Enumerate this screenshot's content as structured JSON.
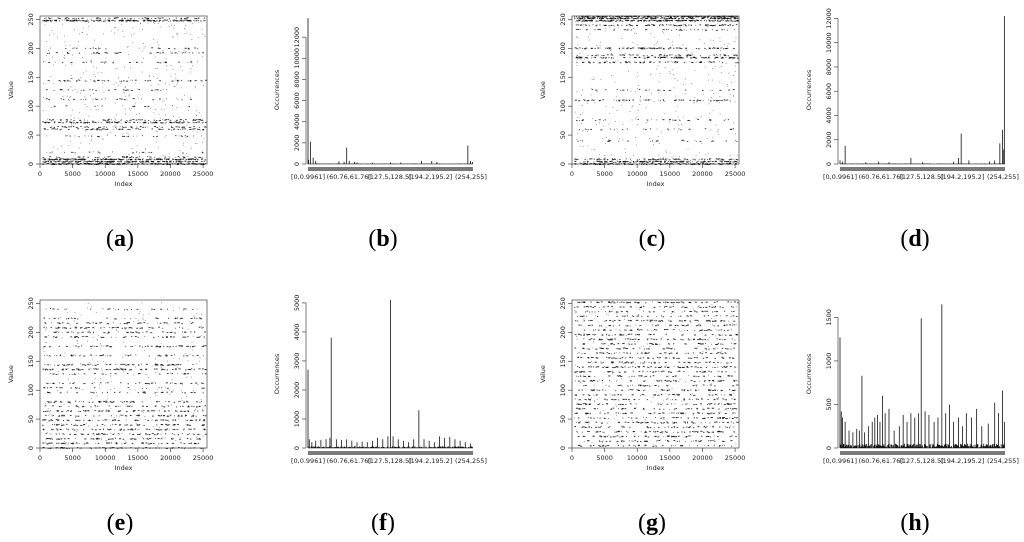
{
  "chart_data": [
    {
      "panel": "a",
      "type": "scatter",
      "caption": {
        "pre": "(",
        "letter": "a",
        "post": ")"
      },
      "xlabel": "Index",
      "ylabel": "Value",
      "xlim": [
        0,
        25600
      ],
      "ylim": [
        0,
        256
      ],
      "xticks": [
        0,
        5000,
        10000,
        15000,
        20000,
        25000
      ],
      "yticks": [
        0,
        50,
        100,
        150,
        200,
        250
      ],
      "bands": [
        {
          "y": 0,
          "density": 0.9
        },
        {
          "y": 4,
          "density": 0.9
        },
        {
          "y": 8,
          "density": 0.9
        },
        {
          "y": 12,
          "density": 0.4
        },
        {
          "y": 20,
          "density": 0.3
        },
        {
          "y": 48,
          "density": 0.3
        },
        {
          "y": 60,
          "density": 0.5
        },
        {
          "y": 64,
          "density": 0.5
        },
        {
          "y": 72,
          "density": 0.7
        },
        {
          "y": 76,
          "density": 0.5
        },
        {
          "y": 100,
          "density": 0.2
        },
        {
          "y": 112,
          "density": 0.3
        },
        {
          "y": 128,
          "density": 0.3
        },
        {
          "y": 144,
          "density": 0.4
        },
        {
          "y": 176,
          "density": 0.3
        },
        {
          "y": 192,
          "density": 0.35
        },
        {
          "y": 200,
          "density": 0.3
        },
        {
          "y": 248,
          "density": 0.85
        },
        {
          "y": 252,
          "density": 0.5
        }
      ],
      "scatter_noise": 0.06
    },
    {
      "panel": "b",
      "type": "bar",
      "caption": {
        "pre": "(",
        "letter": "b",
        "post": ")"
      },
      "xlabel": "",
      "ylabel": "Occurrences",
      "ylim": [
        0,
        14000
      ],
      "yticks": [
        0,
        2000,
        4000,
        6000,
        8000,
        10000,
        12000
      ],
      "xticklabels": [
        "[0,0.9961]",
        "(60.76,61.76]",
        "(127.5,128.5]",
        "(194.2,195.2]",
        "(254,255]"
      ],
      "bins": 256,
      "spikes": [
        [
          0,
          13800
        ],
        [
          1,
          400
        ],
        [
          4,
          2100
        ],
        [
          8,
          600
        ],
        [
          12,
          300
        ],
        [
          48,
          250
        ],
        [
          56,
          200
        ],
        [
          60,
          1550
        ],
        [
          64,
          300
        ],
        [
          72,
          200
        ],
        [
          76,
          150
        ],
        [
          100,
          120
        ],
        [
          128,
          150
        ],
        [
          144,
          150
        ],
        [
          176,
          300
        ],
        [
          192,
          280
        ],
        [
          200,
          200
        ],
        [
          248,
          1750
        ],
        [
          252,
          300
        ],
        [
          255,
          200
        ]
      ],
      "baseline_noise": 40
    },
    {
      "panel": "c",
      "type": "scatter",
      "caption": {
        "pre": "(",
        "letter": "c",
        "post": ")"
      },
      "xlabel": "Index",
      "ylabel": "Value",
      "xlim": [
        0,
        25600
      ],
      "ylim": [
        0,
        256
      ],
      "xticks": [
        0,
        5000,
        10000,
        15000,
        20000,
        25000
      ],
      "yticks": [
        0,
        50,
        100,
        150,
        200,
        250
      ],
      "bands": [
        {
          "y": 0,
          "density": 0.8
        },
        {
          "y": 4,
          "density": 0.8
        },
        {
          "y": 8,
          "density": 0.6
        },
        {
          "y": 40,
          "density": 0.3
        },
        {
          "y": 60,
          "density": 0.3
        },
        {
          "y": 76,
          "density": 0.3
        },
        {
          "y": 110,
          "density": 0.5
        },
        {
          "y": 128,
          "density": 0.3
        },
        {
          "y": 176,
          "density": 0.5
        },
        {
          "y": 184,
          "density": 0.7
        },
        {
          "y": 188,
          "density": 0.5
        },
        {
          "y": 200,
          "density": 0.6
        },
        {
          "y": 232,
          "density": 0.4
        },
        {
          "y": 240,
          "density": 0.6
        },
        {
          "y": 248,
          "density": 0.9
        },
        {
          "y": 252,
          "density": 0.9
        },
        {
          "y": 255,
          "density": 0.9
        }
      ],
      "scatter_noise": 0.05
    },
    {
      "panel": "d",
      "type": "bar",
      "caption": {
        "pre": "(",
        "letter": "d",
        "post": ")"
      },
      "xlabel": "",
      "ylabel": "Occurrences",
      "ylim": [
        0,
        12200
      ],
      "yticks": [
        0,
        2000,
        4000,
        6000,
        8000,
        10000,
        12000
      ],
      "xticklabels": [
        "[0,0.9961]",
        "(60.76,61.76]",
        "(127.5,128.5]",
        "(194.2,195.2]",
        "(254,255]"
      ],
      "bins": 256,
      "spikes": [
        [
          0,
          300
        ],
        [
          4,
          200
        ],
        [
          8,
          1500
        ],
        [
          40,
          150
        ],
        [
          60,
          200
        ],
        [
          76,
          150
        ],
        [
          110,
          500
        ],
        [
          128,
          150
        ],
        [
          176,
          200
        ],
        [
          184,
          500
        ],
        [
          188,
          2500
        ],
        [
          200,
          300
        ],
        [
          232,
          200
        ],
        [
          240,
          300
        ],
        [
          248,
          1700
        ],
        [
          252,
          2800
        ],
        [
          254,
          1200
        ],
        [
          255,
          12200
        ]
      ],
      "baseline_noise": 40
    },
    {
      "panel": "e",
      "type": "scatter",
      "caption": {
        "pre": "(",
        "letter": "e",
        "post": ")"
      },
      "xlabel": "Index",
      "ylabel": "Value",
      "xlim": [
        0,
        25600
      ],
      "ylim": [
        0,
        256
      ],
      "xticks": [
        0,
        5000,
        10000,
        15000,
        20000,
        25000
      ],
      "yticks": [
        0,
        50,
        100,
        150,
        200,
        250
      ],
      "bands": [
        {
          "y": 0,
          "density": 0.5
        },
        {
          "y": 8,
          "density": 0.5
        },
        {
          "y": 16,
          "density": 0.45
        },
        {
          "y": 24,
          "density": 0.5
        },
        {
          "y": 32,
          "density": 0.45
        },
        {
          "y": 40,
          "density": 0.5
        },
        {
          "y": 48,
          "density": 0.5
        },
        {
          "y": 56,
          "density": 0.45
        },
        {
          "y": 64,
          "density": 0.5
        },
        {
          "y": 72,
          "density": 0.45
        },
        {
          "y": 80,
          "density": 0.5
        },
        {
          "y": 96,
          "density": 0.4
        },
        {
          "y": 104,
          "density": 0.35
        },
        {
          "y": 112,
          "density": 0.4
        },
        {
          "y": 128,
          "density": 0.35
        },
        {
          "y": 136,
          "density": 0.55
        },
        {
          "y": 144,
          "density": 0.5
        },
        {
          "y": 160,
          "density": 0.45
        },
        {
          "y": 176,
          "density": 0.45
        },
        {
          "y": 192,
          "density": 0.45
        },
        {
          "y": 200,
          "density": 0.4
        },
        {
          "y": 208,
          "density": 0.45
        },
        {
          "y": 216,
          "density": 0.4
        },
        {
          "y": 224,
          "density": 0.35
        },
        {
          "y": 240,
          "density": 0.3
        }
      ],
      "scatter_noise": 0.04
    },
    {
      "panel": "f",
      "type": "bar",
      "caption": {
        "pre": "(",
        "letter": "f",
        "post": ")"
      },
      "xlabel": "",
      "ylabel": "Occurrences",
      "ylim": [
        0,
        5100
      ],
      "yticks": [
        0,
        1000,
        2000,
        3000,
        4000,
        5000
      ],
      "xticklabels": [
        "[0,0.9961]",
        "(60.76,61.76]",
        "(127.5,128.5]",
        "(194.2,195.2]",
        "(254,255]"
      ],
      "bins": 256,
      "spikes": [
        [
          0,
          2700
        ],
        [
          2,
          300
        ],
        [
          6,
          200
        ],
        [
          12,
          250
        ],
        [
          20,
          280
        ],
        [
          28,
          300
        ],
        [
          34,
          350
        ],
        [
          36,
          3800
        ],
        [
          44,
          300
        ],
        [
          52,
          280
        ],
        [
          60,
          300
        ],
        [
          68,
          250
        ],
        [
          76,
          200
        ],
        [
          84,
          220
        ],
        [
          92,
          200
        ],
        [
          100,
          250
        ],
        [
          108,
          350
        ],
        [
          116,
          300
        ],
        [
          124,
          400
        ],
        [
          128,
          5100
        ],
        [
          132,
          400
        ],
        [
          140,
          300
        ],
        [
          148,
          250
        ],
        [
          156,
          200
        ],
        [
          164,
          300
        ],
        [
          172,
          1300
        ],
        [
          180,
          300
        ],
        [
          188,
          250
        ],
        [
          196,
          200
        ],
        [
          204,
          400
        ],
        [
          212,
          350
        ],
        [
          220,
          380
        ],
        [
          228,
          300
        ],
        [
          236,
          250
        ],
        [
          244,
          200
        ],
        [
          252,
          150
        ]
      ],
      "baseline_noise": 60
    },
    {
      "panel": "g",
      "type": "scatter",
      "caption": {
        "pre": "(",
        "letter": "g",
        "post": ")"
      },
      "xlabel": "Index",
      "ylabel": "Value",
      "xlim": [
        0,
        25600
      ],
      "ylim": [
        0,
        256
      ],
      "xticks": [
        0,
        5000,
        10000,
        15000,
        20000,
        25000
      ],
      "yticks": [
        0,
        50,
        100,
        150,
        200,
        250
      ],
      "bands": [
        {
          "y": 4,
          "density": 0.45
        },
        {
          "y": 12,
          "density": 0.45
        },
        {
          "y": 20,
          "density": 0.5
        },
        {
          "y": 28,
          "density": 0.5
        },
        {
          "y": 36,
          "density": 0.45
        },
        {
          "y": 44,
          "density": 0.5
        },
        {
          "y": 52,
          "density": 0.45
        },
        {
          "y": 60,
          "density": 0.5
        },
        {
          "y": 68,
          "density": 0.45
        },
        {
          "y": 76,
          "density": 0.5
        },
        {
          "y": 84,
          "density": 0.45
        },
        {
          "y": 92,
          "density": 0.45
        },
        {
          "y": 100,
          "density": 0.5
        },
        {
          "y": 108,
          "density": 0.4
        },
        {
          "y": 116,
          "density": 0.45
        },
        {
          "y": 124,
          "density": 0.45
        },
        {
          "y": 132,
          "density": 0.45
        },
        {
          "y": 140,
          "density": 0.55
        },
        {
          "y": 148,
          "density": 0.5
        },
        {
          "y": 156,
          "density": 0.45
        },
        {
          "y": 164,
          "density": 0.45
        },
        {
          "y": 172,
          "density": 0.45
        },
        {
          "y": 180,
          "density": 0.45
        },
        {
          "y": 188,
          "density": 0.5
        },
        {
          "y": 196,
          "density": 0.45
        },
        {
          "y": 204,
          "density": 0.45
        },
        {
          "y": 212,
          "density": 0.45
        },
        {
          "y": 220,
          "density": 0.5
        },
        {
          "y": 228,
          "density": 0.45
        },
        {
          "y": 236,
          "density": 0.45
        },
        {
          "y": 244,
          "density": 0.45
        },
        {
          "y": 252,
          "density": 0.5
        }
      ],
      "scatter_noise": 0.03
    },
    {
      "panel": "h",
      "type": "bar",
      "caption": {
        "pre": "(",
        "letter": "h",
        "post": ")"
      },
      "xlabel": "",
      "ylabel": "Occurrences",
      "ylim": [
        0,
        1700
      ],
      "yticks": [
        0,
        500,
        1000,
        1500
      ],
      "xticklabels": [
        "[0,0.9961]",
        "(60.76,61.76]",
        "(127.5,128.5]",
        "(194.2,195.2]",
        "(254,255]"
      ],
      "bins": 256,
      "spikes": [
        [
          0,
          1270
        ],
        [
          2,
          420
        ],
        [
          4,
          350
        ],
        [
          8,
          300
        ],
        [
          14,
          200
        ],
        [
          20,
          180
        ],
        [
          26,
          220
        ],
        [
          30,
          200
        ],
        [
          34,
          830
        ],
        [
          38,
          180
        ],
        [
          44,
          250
        ],
        [
          50,
          300
        ],
        [
          54,
          350
        ],
        [
          58,
          380
        ],
        [
          62,
          300
        ],
        [
          66,
          600
        ],
        [
          70,
          400
        ],
        [
          76,
          450
        ],
        [
          84,
          200
        ],
        [
          92,
          250
        ],
        [
          98,
          380
        ],
        [
          104,
          300
        ],
        [
          110,
          400
        ],
        [
          116,
          350
        ],
        [
          122,
          400
        ],
        [
          126,
          1490
        ],
        [
          132,
          420
        ],
        [
          138,
          380
        ],
        [
          146,
          300
        ],
        [
          152,
          350
        ],
        [
          158,
          1650
        ],
        [
          164,
          400
        ],
        [
          170,
          500
        ],
        [
          176,
          300
        ],
        [
          184,
          350
        ],
        [
          190,
          250
        ],
        [
          196,
          400
        ],
        [
          204,
          350
        ],
        [
          212,
          450
        ],
        [
          220,
          250
        ],
        [
          230,
          280
        ],
        [
          240,
          520
        ],
        [
          246,
          400
        ],
        [
          252,
          660
        ],
        [
          255,
          300
        ]
      ],
      "baseline_noise": 50
    }
  ]
}
